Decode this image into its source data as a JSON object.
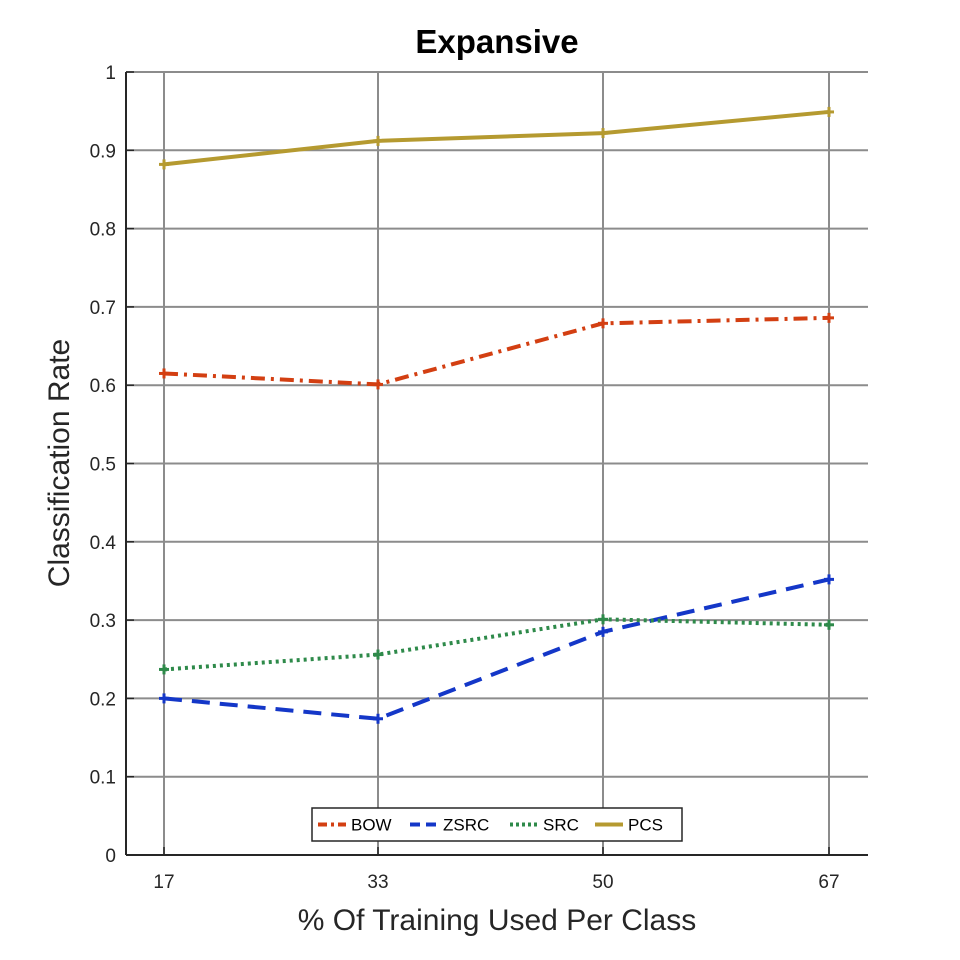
{
  "chart_data": {
    "type": "line",
    "title": "Expansive",
    "xlabel": "% Of Training Used Per Class",
    "ylabel": "Classification Rate",
    "x": [
      17,
      33,
      50,
      67
    ],
    "xtick_labels": [
      "17",
      "33",
      "50",
      "67"
    ],
    "ylim": [
      0,
      1
    ],
    "yticks": [
      0,
      0.1,
      0.2,
      0.3,
      0.4,
      0.5,
      0.6,
      0.7,
      0.8,
      0.9,
      1
    ],
    "ytick_labels": [
      "0",
      "0.1",
      "0.2",
      "0.3",
      "0.4",
      "0.5",
      "0.6",
      "0.7",
      "0.8",
      "0.9",
      "1"
    ],
    "grid": true,
    "legend_position": "bottom-center",
    "series": [
      {
        "name": "BOW",
        "values": [
          0.615,
          0.601,
          0.679,
          0.686
        ],
        "color": "#D33F12",
        "line_style": "dash-dot"
      },
      {
        "name": "ZSRC",
        "values": [
          0.2,
          0.174,
          0.285,
          0.352
        ],
        "color": "#1437C8",
        "line_style": "dashed"
      },
      {
        "name": "SRC",
        "values": [
          0.237,
          0.256,
          0.301,
          0.294
        ],
        "color": "#2E8A4A",
        "line_style": "dotted"
      },
      {
        "name": "PCS",
        "values": [
          0.882,
          0.912,
          0.922,
          0.949
        ],
        "color": "#B59A30",
        "line_style": "solid"
      }
    ]
  }
}
